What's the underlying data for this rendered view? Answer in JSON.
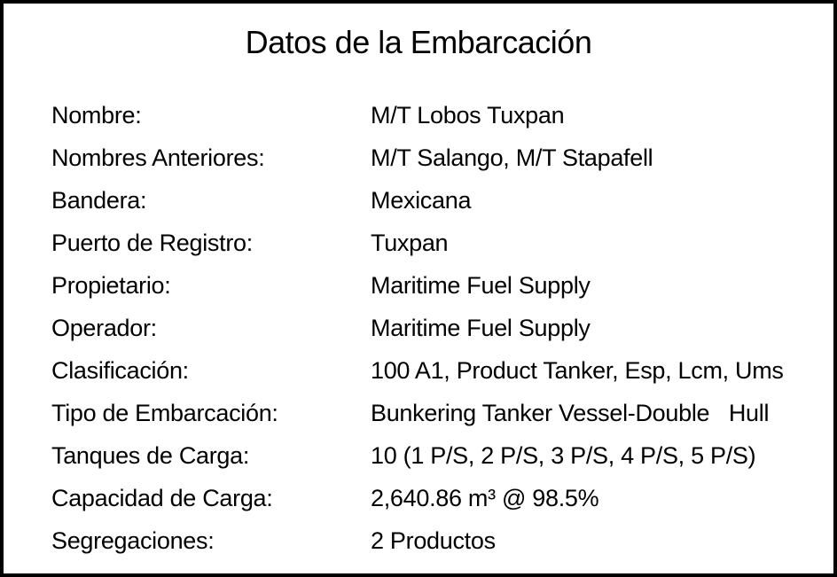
{
  "title": "Datos de la Embarcación",
  "fields": [
    {
      "label": "Nombre:",
      "value": "M/T Lobos Tuxpan"
    },
    {
      "label": "Nombres Anteriores:",
      "value": "M/T Salango, M/T Stapafell"
    },
    {
      "label": "Bandera:",
      "value": "Mexicana"
    },
    {
      "label": "Puerto de Registro:",
      "value": "Tuxpan"
    },
    {
      "label": "Propietario:",
      "value": "Maritime Fuel Supply"
    },
    {
      "label": "Operador:",
      "value": "Maritime Fuel Supply"
    },
    {
      "label": "Clasificación:",
      "value": "100 A1, Product Tanker, Esp, Lcm, Ums"
    },
    {
      "label": "Tipo de Embarcación:",
      "value": "Bunkering Tanker Vessel-Double   Hull"
    },
    {
      "label": "Tanques de Carga:",
      "value": "10 (1 P/S, 2 P/S, 3 P/S, 4 P/S, 5 P/S)"
    },
    {
      "label": "Capacidad de Carga:",
      "value": "2,640.86 m³ @ 98.5%"
    },
    {
      "label": "Segregaciones:",
      "value": "2 Productos"
    }
  ]
}
